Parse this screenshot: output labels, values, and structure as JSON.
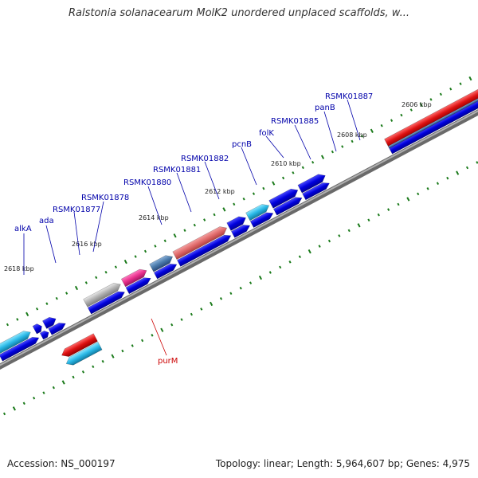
{
  "title": "Ralstonia solanacearum MolK2 unordered unplaced scaffolds, w...",
  "footer": {
    "accession": "Accession: NS_000197",
    "summary": "Topology: linear; Length: 5,964,607 bp; Genes: 4,975"
  },
  "colors": {
    "forward_strand": "#0000dd",
    "highlight_blue": "#2ab8e6",
    "magenta": "#e8308c",
    "salmon": "#e06a6a",
    "red": "#dd1111",
    "gray": "#aaaaaa",
    "steel": "#4a7aaa",
    "tick": "#1a7a1a",
    "label_blue": "#0000aa",
    "label_red": "#cc0000"
  },
  "ticks": [
    "2618 kbp",
    "2616 kbp",
    "2614 kbp",
    "2612 kbp",
    "2610 kbp",
    "2608 kbp",
    "2606 kbp"
  ],
  "genes": {
    "alkA": "alkA",
    "ada": "ada",
    "RSMK01877": "RSMK01877",
    "RSMK01878": "RSMK01878",
    "RSMK01880": "RSMK01880",
    "RSMK01881": "RSMK01881",
    "RSMK01882": "RSMK01882",
    "pcnB": "pcnB",
    "folK": "folK",
    "RSMK01885": "RSMK01885",
    "panB": "panB",
    "RSMK01887": "RSMK01887",
    "purM": "purM"
  }
}
